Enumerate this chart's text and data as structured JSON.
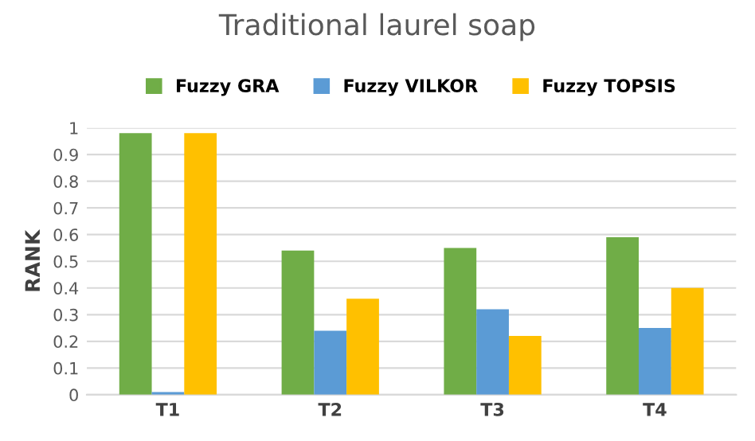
{
  "chart_data": {
    "type": "bar",
    "title": "Traditional laurel soap",
    "ylabel": "RANK",
    "categories": [
      "T1",
      "T2",
      "T3",
      "T4"
    ],
    "series": [
      {
        "name": "Fuzzy GRA",
        "color": "#70ad47",
        "values": [
          0.98,
          0.54,
          0.55,
          0.59
        ]
      },
      {
        "name": "Fuzzy VILKOR",
        "color": "#5b9bd5",
        "values": [
          0.01,
          0.24,
          0.32,
          0.25
        ]
      },
      {
        "name": "Fuzzy TOPSIS",
        "color": "#ffc000",
        "values": [
          0.98,
          0.36,
          0.22,
          0.4
        ]
      }
    ],
    "ylim": [
      0,
      1
    ],
    "yticks": [
      0,
      0.1,
      0.2,
      0.3,
      0.4,
      0.5,
      0.6,
      0.7,
      0.8,
      0.9,
      1
    ],
    "grid": "y",
    "legend": "top"
  }
}
